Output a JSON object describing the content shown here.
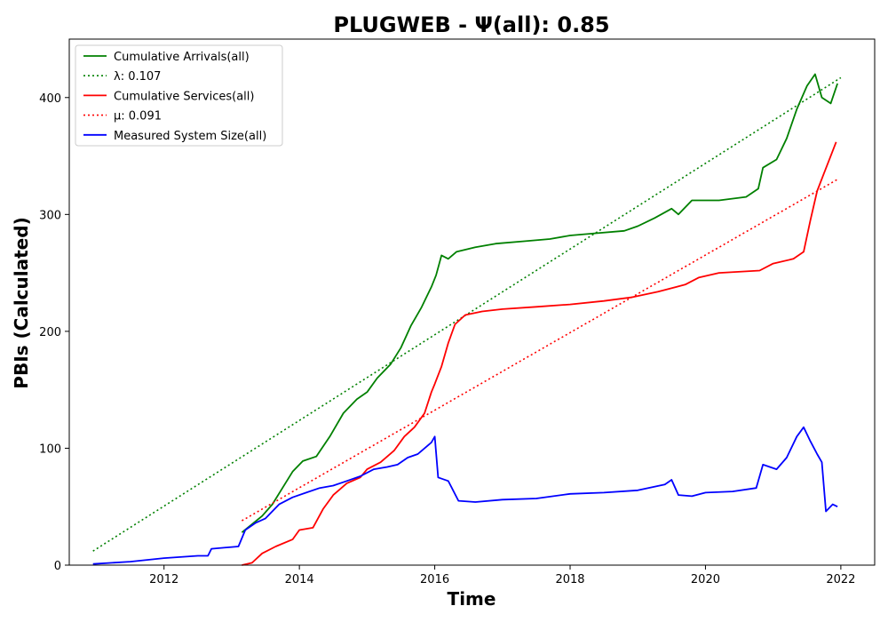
{
  "chart_data": {
    "type": "line",
    "title": "PLUGWEB -  Ψ(all): 0.85",
    "xlabel": "Time",
    "ylabel": "PBIs (Calculated)",
    "xlim": [
      2010.6,
      2022.5
    ],
    "ylim": [
      0,
      450
    ],
    "x_ticks": [
      2012,
      2014,
      2016,
      2018,
      2020,
      2022
    ],
    "y_ticks": [
      0,
      100,
      200,
      300,
      400
    ],
    "grid": false,
    "legend_position": "top-left",
    "series": [
      {
        "name": "Cumulative Arrivals(all)",
        "color": "#008000",
        "style": "solid",
        "points": [
          [
            2013.15,
            28
          ],
          [
            2013.3,
            35
          ],
          [
            2013.45,
            42
          ],
          [
            2013.6,
            52
          ],
          [
            2013.75,
            66
          ],
          [
            2013.9,
            80
          ],
          [
            2014.05,
            89
          ],
          [
            2014.25,
            93
          ],
          [
            2014.45,
            110
          ],
          [
            2014.65,
            130
          ],
          [
            2014.85,
            142
          ],
          [
            2015.0,
            148
          ],
          [
            2015.15,
            160
          ],
          [
            2015.35,
            172
          ],
          [
            2015.5,
            186
          ],
          [
            2015.65,
            205
          ],
          [
            2015.8,
            220
          ],
          [
            2015.95,
            238
          ],
          [
            2016.02,
            248
          ],
          [
            2016.1,
            265
          ],
          [
            2016.2,
            262
          ],
          [
            2016.32,
            268
          ],
          [
            2016.6,
            272
          ],
          [
            2016.9,
            275
          ],
          [
            2017.3,
            277
          ],
          [
            2017.7,
            279
          ],
          [
            2018.0,
            282
          ],
          [
            2018.4,
            284
          ],
          [
            2018.8,
            286
          ],
          [
            2019.0,
            290
          ],
          [
            2019.25,
            297
          ],
          [
            2019.5,
            305
          ],
          [
            2019.6,
            300
          ],
          [
            2019.8,
            312
          ],
          [
            2020.2,
            312
          ],
          [
            2020.6,
            315
          ],
          [
            2020.78,
            322
          ],
          [
            2020.85,
            340
          ],
          [
            2021.05,
            347
          ],
          [
            2021.2,
            365
          ],
          [
            2021.35,
            390
          ],
          [
            2021.5,
            410
          ],
          [
            2021.62,
            420
          ],
          [
            2021.72,
            400
          ],
          [
            2021.85,
            395
          ],
          [
            2021.95,
            412
          ]
        ]
      },
      {
        "name": "λ: 0.107",
        "color": "#008000",
        "style": "dotted",
        "points": [
          [
            2010.95,
            12
          ],
          [
            2022.0,
            417
          ]
        ]
      },
      {
        "name": "Cumulative Services(all)",
        "color": "#ff0000",
        "style": "solid",
        "points": [
          [
            2013.15,
            0
          ],
          [
            2013.3,
            2
          ],
          [
            2013.45,
            10
          ],
          [
            2013.65,
            16
          ],
          [
            2013.9,
            22
          ],
          [
            2014.0,
            30
          ],
          [
            2014.2,
            32
          ],
          [
            2014.35,
            48
          ],
          [
            2014.5,
            60
          ],
          [
            2014.7,
            70
          ],
          [
            2014.9,
            75
          ],
          [
            2015.0,
            82
          ],
          [
            2015.2,
            88
          ],
          [
            2015.4,
            98
          ],
          [
            2015.55,
            110
          ],
          [
            2015.7,
            118
          ],
          [
            2015.85,
            130
          ],
          [
            2015.95,
            148
          ],
          [
            2016.0,
            155
          ],
          [
            2016.1,
            170
          ],
          [
            2016.2,
            190
          ],
          [
            2016.3,
            206
          ],
          [
            2016.45,
            214
          ],
          [
            2016.7,
            217
          ],
          [
            2017.0,
            219
          ],
          [
            2017.5,
            221
          ],
          [
            2018.0,
            223
          ],
          [
            2018.5,
            226
          ],
          [
            2018.9,
            229
          ],
          [
            2019.3,
            234
          ],
          [
            2019.7,
            240
          ],
          [
            2019.9,
            246
          ],
          [
            2020.2,
            250
          ],
          [
            2020.8,
            252
          ],
          [
            2021.0,
            258
          ],
          [
            2021.3,
            262
          ],
          [
            2021.45,
            268
          ],
          [
            2021.55,
            295
          ],
          [
            2021.65,
            320
          ],
          [
            2021.75,
            335
          ],
          [
            2021.85,
            350
          ],
          [
            2021.93,
            362
          ]
        ]
      },
      {
        "name": "μ: 0.091",
        "color": "#ff0000",
        "style": "dotted",
        "points": [
          [
            2013.15,
            38
          ],
          [
            2021.95,
            330
          ]
        ]
      },
      {
        "name": "Measured System Size(all)",
        "color": "#0000ff",
        "style": "solid",
        "points": [
          [
            2010.95,
            1
          ],
          [
            2011.5,
            3
          ],
          [
            2012.0,
            6
          ],
          [
            2012.5,
            8
          ],
          [
            2012.65,
            8
          ],
          [
            2012.7,
            14
          ],
          [
            2013.1,
            16
          ],
          [
            2013.2,
            30
          ],
          [
            2013.35,
            36
          ],
          [
            2013.5,
            40
          ],
          [
            2013.7,
            52
          ],
          [
            2013.9,
            58
          ],
          [
            2014.1,
            62
          ],
          [
            2014.3,
            66
          ],
          [
            2014.5,
            68
          ],
          [
            2014.7,
            72
          ],
          [
            2014.9,
            76
          ],
          [
            2015.1,
            82
          ],
          [
            2015.3,
            84
          ],
          [
            2015.45,
            86
          ],
          [
            2015.6,
            92
          ],
          [
            2015.75,
            95
          ],
          [
            2015.95,
            105
          ],
          [
            2016.0,
            110
          ],
          [
            2016.05,
            75
          ],
          [
            2016.2,
            72
          ],
          [
            2016.35,
            55
          ],
          [
            2016.6,
            54
          ],
          [
            2017.0,
            56
          ],
          [
            2017.5,
            57
          ],
          [
            2018.0,
            61
          ],
          [
            2018.5,
            62
          ],
          [
            2019.0,
            64
          ],
          [
            2019.4,
            69
          ],
          [
            2019.5,
            73
          ],
          [
            2019.6,
            60
          ],
          [
            2019.8,
            59
          ],
          [
            2020.0,
            62
          ],
          [
            2020.4,
            63
          ],
          [
            2020.75,
            66
          ],
          [
            2020.85,
            86
          ],
          [
            2021.05,
            82
          ],
          [
            2021.2,
            92
          ],
          [
            2021.35,
            110
          ],
          [
            2021.45,
            118
          ],
          [
            2021.55,
            106
          ],
          [
            2021.65,
            95
          ],
          [
            2021.72,
            88
          ],
          [
            2021.78,
            46
          ],
          [
            2021.88,
            52
          ],
          [
            2021.95,
            50
          ]
        ]
      }
    ]
  }
}
